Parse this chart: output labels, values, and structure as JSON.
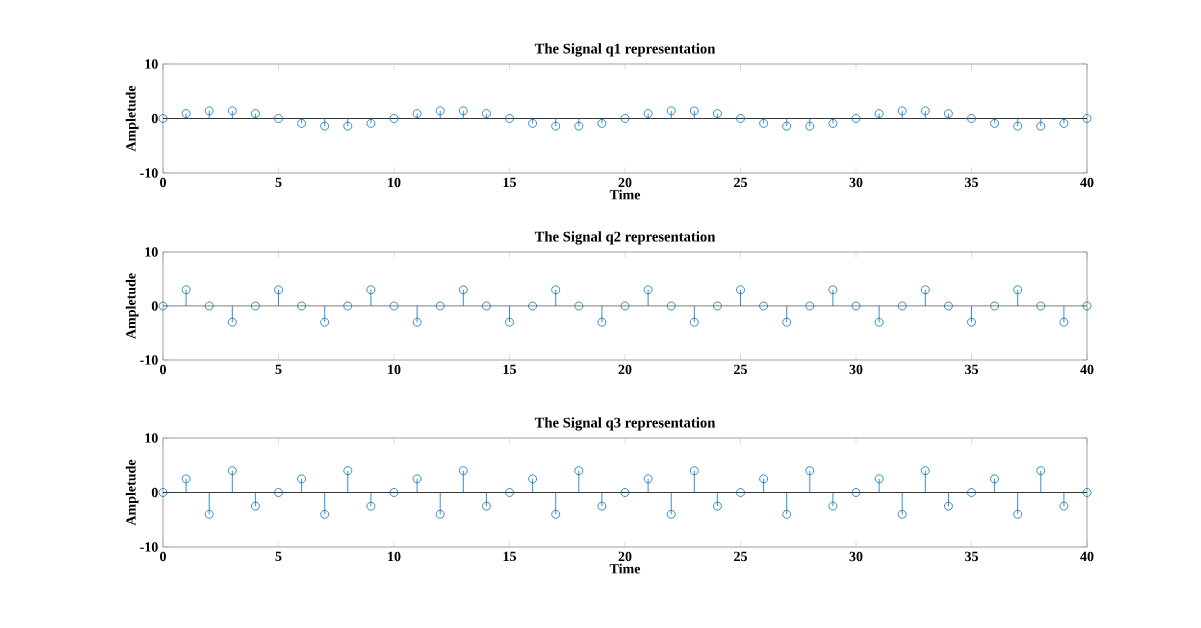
{
  "chart_data": [
    {
      "type": "lollipop",
      "title": "The Signal q1 representation",
      "xlabel": "Time",
      "ylabel": "Ampletude",
      "marker": "circle",
      "grid": false,
      "x": [
        0,
        1,
        2,
        3,
        4,
        5,
        6,
        7,
        8,
        9,
        10,
        11,
        12,
        13,
        14,
        15,
        16,
        17,
        18,
        19,
        20,
        21,
        22,
        23,
        24,
        25,
        26,
        27,
        28,
        29,
        30,
        31,
        32,
        33,
        34,
        35,
        36,
        37,
        38,
        39,
        40
      ],
      "series": [
        {
          "color": "#0072bd",
          "values": [
            0,
            0.9,
            1.4,
            1.4,
            0.9,
            0,
            -0.9,
            -1.4,
            -1.4,
            -0.9,
            0,
            0.9,
            1.4,
            1.4,
            0.9,
            0,
            -0.9,
            -1.4,
            -1.4,
            -0.9,
            0,
            0.9,
            1.4,
            1.4,
            0.9,
            0,
            -0.9,
            -1.4,
            -1.4,
            -0.9,
            0,
            0.9,
            1.4,
            1.4,
            0.9,
            0,
            -0.9,
            -1.4,
            -1.4,
            -0.9,
            0
          ]
        }
      ],
      "ref_lines": [
        {
          "axis": "y",
          "value": 0,
          "color": "#000000"
        }
      ],
      "xlim": [
        0,
        40
      ],
      "xticks": [
        0,
        5,
        10,
        15,
        20,
        25,
        30,
        35,
        40
      ],
      "ylim": [
        -10,
        10
      ],
      "yticks": [
        -10,
        0,
        10
      ]
    },
    {
      "type": "lollipop",
      "title": "The Signal q2 representation",
      "ylabel": "Ampletude",
      "marker": "circle",
      "grid": false,
      "x": [
        0,
        1,
        2,
        3,
        4,
        5,
        6,
        7,
        8,
        9,
        10,
        11,
        12,
        13,
        14,
        15,
        16,
        17,
        18,
        19,
        20,
        21,
        22,
        23,
        24,
        25,
        26,
        27,
        28,
        29,
        30,
        31,
        32,
        33,
        34,
        35,
        36,
        37,
        38,
        39,
        40
      ],
      "series": [
        {
          "color": "#0072bd",
          "values": [
            0,
            3,
            0,
            -3,
            0,
            3,
            0,
            -3,
            0,
            3,
            0,
            -3,
            0,
            3,
            0,
            -3,
            0,
            3,
            0,
            -3,
            0,
            3,
            0,
            -3,
            0,
            3,
            0,
            -3,
            0,
            3,
            0,
            -3,
            0,
            3,
            0,
            -3,
            0,
            3,
            0,
            -3,
            0
          ]
        }
      ],
      "ref_lines": [
        {
          "axis": "y",
          "value": 0,
          "color": "#000000"
        }
      ],
      "xlim": [
        0,
        40
      ],
      "xticks": [
        0,
        5,
        10,
        15,
        20,
        25,
        30,
        35,
        40
      ],
      "ylim": [
        -10,
        10
      ],
      "yticks": [
        -10,
        0,
        10
      ]
    },
    {
      "type": "lollipop",
      "title": "The Signal q3 representation",
      "xlabel": "Time",
      "ylabel": "Ampletude",
      "marker": "circle",
      "grid": false,
      "x": [
        0,
        1,
        2,
        3,
        4,
        5,
        6,
        7,
        8,
        9,
        10,
        11,
        12,
        13,
        14,
        15,
        16,
        17,
        18,
        19,
        20,
        21,
        22,
        23,
        24,
        25,
        26,
        27,
        28,
        29,
        30,
        31,
        32,
        33,
        34,
        35,
        36,
        37,
        38,
        39,
        40
      ],
      "series": [
        {
          "color": "#0072bd",
          "values": [
            0,
            2.5,
            -4,
            4,
            -2.5,
            0,
            2.5,
            -4,
            4,
            -2.5,
            0,
            2.5,
            -4,
            4,
            -2.5,
            0,
            2.5,
            -4,
            4,
            -2.5,
            0,
            2.5,
            -4,
            4,
            -2.5,
            0,
            2.5,
            -4,
            4,
            -2.5,
            0,
            2.5,
            -4,
            4,
            -2.5,
            0,
            2.5,
            -4,
            4,
            -2.5,
            0
          ]
        }
      ],
      "ref_lines": [
        {
          "axis": "y",
          "value": 0,
          "color": "#000000"
        }
      ],
      "xlim": [
        0,
        40
      ],
      "xticks": [
        0,
        5,
        10,
        15,
        20,
        25,
        30,
        35,
        40
      ],
      "ylim": [
        -10,
        10
      ],
      "yticks": [
        -10,
        0,
        10
      ]
    }
  ]
}
